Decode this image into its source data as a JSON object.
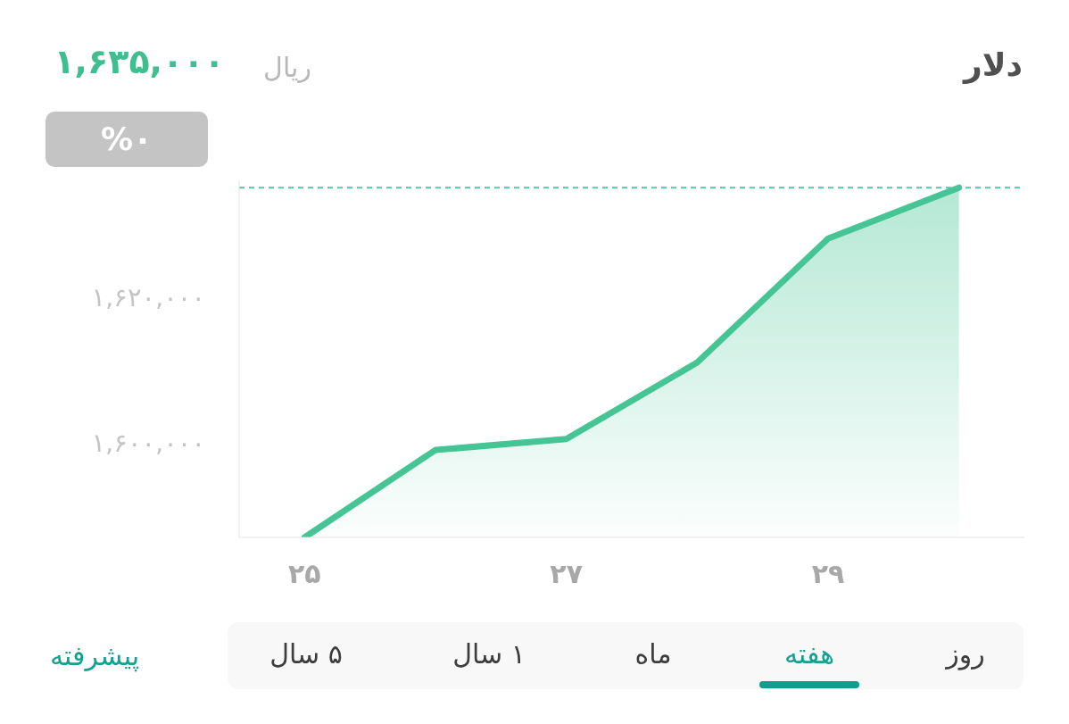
{
  "chart_data": {
    "type": "area",
    "title": "دلار",
    "x": [
      25,
      26,
      27,
      28,
      29,
      30
    ],
    "series": [
      {
        "color": "#45c596",
        "values": [
          1587000,
          1599000,
          1600500,
          1611000,
          1628000,
          1635000
        ]
      }
    ],
    "xlim": [
      24.5,
      30.5
    ],
    "xticks": [
      {
        "value": 25,
        "label": "۲۵"
      },
      {
        "value": 27,
        "label": "۲۷"
      },
      {
        "value": 29,
        "label": "۲۹"
      }
    ],
    "ylim": [
      1587000,
      1636000
    ],
    "yticks": [
      {
        "value": 1600000,
        "label": "۱,۶۰۰,۰۰۰"
      },
      {
        "value": 1620000,
        "label": "۱,۶۲۰,۰۰۰"
      }
    ],
    "ref_lines": [
      {
        "axis": "y",
        "value": 1635000,
        "color": "#5cbfae",
        "line_style": "dashed"
      }
    ],
    "annotations": [
      "۱,۶۳۵,۰۰۰",
      "ریال",
      "%۰",
      "روز",
      "هفته",
      "ماه",
      "۱ سال",
      "۵ سال",
      "پیشرفته"
    ]
  }
}
